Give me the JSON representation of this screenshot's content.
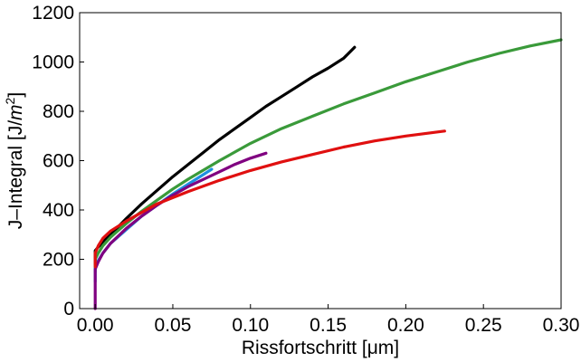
{
  "chart_data": {
    "type": "line",
    "title": "",
    "xlabel": "Rissfortschritt [μm]",
    "ylabel_prefix": "J–Integral [J/",
    "ylabel_unit": "m",
    "ylabel_exp": "2",
    "ylabel_suffix": "]",
    "xlim": [
      -0.01,
      0.3
    ],
    "ylim": [
      0,
      1200
    ],
    "xticks": [
      0.0,
      0.05,
      0.1,
      0.15,
      0.2,
      0.25,
      0.3
    ],
    "xtick_labels": [
      "0.00",
      "0.05",
      "0.10",
      "0.15",
      "0.20",
      "0.25",
      "0.30"
    ],
    "yticks": [
      0,
      200,
      400,
      600,
      800,
      1000,
      1200
    ],
    "ytick_labels": [
      "0",
      "200",
      "400",
      "600",
      "800",
      "1000",
      "1200"
    ],
    "grid": false,
    "series": [
      {
        "color": "#000000",
        "x": [
          0.0,
          0.0,
          0.002,
          0.005,
          0.01,
          0.02,
          0.03,
          0.04,
          0.05,
          0.06,
          0.07,
          0.08,
          0.09,
          0.1,
          0.11,
          0.12,
          0.13,
          0.14,
          0.15,
          0.16,
          0.167
        ],
        "y": [
          180,
          235,
          250,
          270,
          300,
          365,
          425,
          480,
          535,
          585,
          635,
          685,
          730,
          775,
          820,
          860,
          900,
          940,
          975,
          1015,
          1060
        ]
      },
      {
        "color": "#3a9a3a",
        "x": [
          0.0,
          0.0,
          0.002,
          0.005,
          0.01,
          0.02,
          0.03,
          0.04,
          0.05,
          0.06,
          0.08,
          0.1,
          0.12,
          0.14,
          0.16,
          0.18,
          0.2,
          0.22,
          0.24,
          0.26,
          0.28,
          0.3
        ],
        "y": [
          150,
          200,
          225,
          255,
          290,
          345,
          395,
          440,
          485,
          525,
          600,
          670,
          730,
          780,
          830,
          875,
          920,
          960,
          1000,
          1035,
          1065,
          1090
        ]
      },
      {
        "color": "#1e90e0",
        "x": [
          0.0,
          0.0,
          0.002,
          0.005,
          0.01,
          0.02,
          0.03,
          0.04,
          0.05,
          0.06,
          0.07,
          0.075
        ],
        "y": [
          110,
          170,
          195,
          225,
          265,
          320,
          375,
          420,
          465,
          505,
          545,
          565
        ]
      },
      {
        "color": "#800080",
        "x": [
          0.0,
          0.0,
          0.0,
          0.002,
          0.005,
          0.01,
          0.02,
          0.03,
          0.04,
          0.05,
          0.06,
          0.07,
          0.08,
          0.09,
          0.1,
          0.11
        ],
        "y": [
          0,
          110,
          160,
          190,
          225,
          265,
          325,
          375,
          420,
          460,
          495,
          525,
          555,
          585,
          610,
          630
        ]
      },
      {
        "color": "#e01010",
        "x": [
          0.0,
          0.0,
          0.002,
          0.005,
          0.01,
          0.02,
          0.03,
          0.04,
          0.05,
          0.06,
          0.08,
          0.1,
          0.12,
          0.14,
          0.16,
          0.18,
          0.2,
          0.225
        ],
        "y": [
          170,
          225,
          255,
          285,
          315,
          355,
          390,
          425,
          450,
          475,
          520,
          560,
          595,
          625,
          655,
          680,
          700,
          720
        ]
      }
    ]
  }
}
